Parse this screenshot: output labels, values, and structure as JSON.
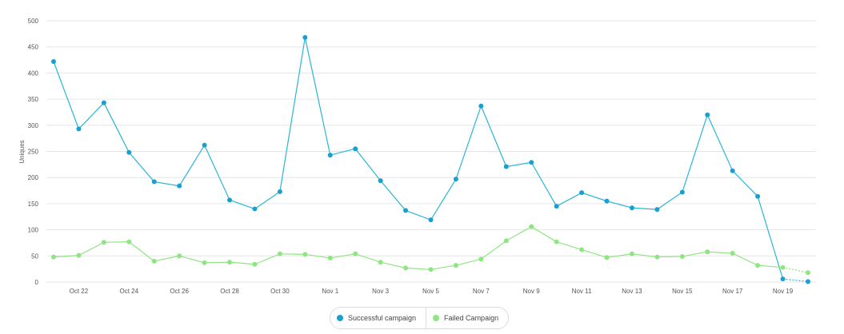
{
  "chart_data": {
    "type": "line",
    "ylabel": "Uniques",
    "ylim": [
      0,
      500
    ],
    "yticks": [
      0,
      50,
      100,
      150,
      200,
      250,
      300,
      350,
      400,
      450,
      500
    ],
    "grid": true,
    "legend_position": "bottom-center",
    "x": [
      "Oct 21",
      "Oct 22",
      "Oct 23",
      "Oct 24",
      "Oct 25",
      "Oct 26",
      "Oct 27",
      "Oct 28",
      "Oct 29",
      "Oct 30",
      "Oct 31",
      "Nov 1",
      "Nov 2",
      "Nov 3",
      "Nov 4",
      "Nov 5",
      "Nov 6",
      "Nov 7",
      "Nov 8",
      "Nov 9",
      "Nov 10",
      "Nov 11",
      "Nov 12",
      "Nov 13",
      "Nov 14",
      "Nov 15",
      "Nov 16",
      "Nov 17",
      "Nov 18",
      "Nov 19",
      "Nov 20"
    ],
    "xtick_labels": [
      "Oct 22",
      "Oct 24",
      "Oct 26",
      "Oct 28",
      "Oct 30",
      "Nov 1",
      "Nov 3",
      "Nov 5",
      "Nov 7",
      "Nov 9",
      "Nov 11",
      "Nov 13",
      "Nov 15",
      "Nov 17",
      "Nov 19"
    ],
    "series": [
      {
        "name": "Successful campaign",
        "color": "#29b6d3",
        "values": [
          422,
          293,
          343,
          248,
          192,
          184,
          262,
          157,
          140,
          173,
          468,
          243,
          255,
          194,
          137,
          119,
          197,
          337,
          221,
          229,
          145,
          171,
          155,
          142,
          139,
          172,
          320,
          213,
          164,
          6,
          1
        ]
      },
      {
        "name": "Failed Campaign",
        "color": "#8fe582",
        "values": [
          48,
          51,
          76,
          77,
          40,
          50,
          37,
          38,
          34,
          54,
          53,
          46,
          54,
          38,
          27,
          24,
          32,
          44,
          79,
          106,
          77,
          62,
          47,
          54,
          48,
          49,
          58,
          55,
          32,
          28,
          18
        ]
      }
    ]
  }
}
